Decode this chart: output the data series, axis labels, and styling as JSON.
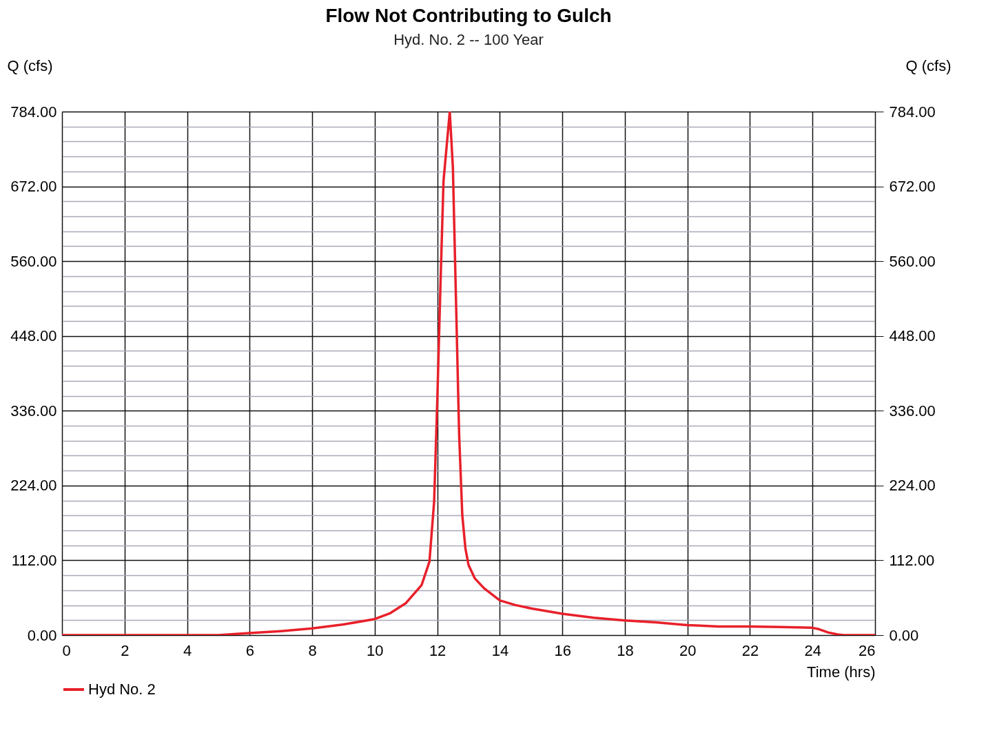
{
  "chart_data": {
    "type": "line",
    "title": "Flow Not Contributing to Gulch",
    "subtitle": "Hyd. No. 2 -- 100 Year",
    "xlabel": "Time (hrs)",
    "ylabel": "Q (cfs)",
    "y2label": "Q (cfs)",
    "xlim": [
      0,
      26
    ],
    "xticks": [
      0,
      2,
      4,
      6,
      8,
      10,
      12,
      14,
      16,
      18,
      20,
      22,
      24,
      26
    ],
    "ylim": [
      0,
      784
    ],
    "yticks": [
      {
        "value": 0,
        "label": "0.00"
      },
      {
        "value": 22.4,
        "label": null
      },
      {
        "value": 44.8,
        "label": null
      },
      {
        "value": 67.2,
        "label": null
      },
      {
        "value": 89.6,
        "label": null
      },
      {
        "value": 112,
        "label": "112.00"
      },
      {
        "value": 134.4,
        "label": null
      },
      {
        "value": 156.8,
        "label": null
      },
      {
        "value": 179.2,
        "label": null
      },
      {
        "value": 201.6,
        "label": null
      },
      {
        "value": 224,
        "label": "224.00"
      },
      {
        "value": 246.4,
        "label": null
      },
      {
        "value": 268.8,
        "label": null
      },
      {
        "value": 291.2,
        "label": null
      },
      {
        "value": 313.6,
        "label": null
      },
      {
        "value": 336,
        "label": "336.00"
      },
      {
        "value": 358.4,
        "label": null
      },
      {
        "value": 380.8,
        "label": null
      },
      {
        "value": 403.2,
        "label": null
      },
      {
        "value": 425.6,
        "label": null
      },
      {
        "value": 448,
        "label": "448.00"
      },
      {
        "value": 470.4,
        "label": null
      },
      {
        "value": 492.8,
        "label": null
      },
      {
        "value": 515.2,
        "label": null
      },
      {
        "value": 537.6,
        "label": null
      },
      {
        "value": 560,
        "label": "560.00"
      },
      {
        "value": 582.4,
        "label": null
      },
      {
        "value": 604.8,
        "label": null
      },
      {
        "value": 627.2,
        "label": null
      },
      {
        "value": 649.6,
        "label": null
      },
      {
        "value": 672,
        "label": "672.00"
      },
      {
        "value": 694.4,
        "label": null
      },
      {
        "value": 716.8,
        "label": null
      },
      {
        "value": 739.2,
        "label": null
      },
      {
        "value": 761.6,
        "label": null
      },
      {
        "value": 784,
        "label": "784.00"
      }
    ],
    "y2lim": [
      0,
      784
    ],
    "y2ticks": [
      {
        "value": 0,
        "label": "0.00"
      },
      {
        "value": 112,
        "label": "112.00"
      },
      {
        "value": 224,
        "label": "224.00"
      },
      {
        "value": 336,
        "label": "336.00"
      },
      {
        "value": 448,
        "label": "448.00"
      },
      {
        "value": 560,
        "label": "560.00"
      },
      {
        "value": 672,
        "label": "672.00"
      },
      {
        "value": 784,
        "label": "784.00"
      }
    ],
    "grid": true,
    "legend": "bottom left",
    "marker": "none",
    "line_style": "solid",
    "series": [
      {
        "name": "Hyd No. 2",
        "color": "#e8202a",
        "x": [
          0,
          2,
          4,
          5,
          6,
          7,
          8,
          9,
          10,
          10.5,
          11,
          11.5,
          11.75,
          11.9,
          12.0,
          12.1,
          12.2,
          12.4,
          12.5,
          12.6,
          12.7,
          12.8,
          12.9,
          13.0,
          13.2,
          13.5,
          14,
          14.5,
          15,
          16,
          17,
          18,
          19,
          20,
          21,
          22,
          23,
          24,
          24.2,
          24.5,
          24.8,
          25,
          26
        ],
        "values": [
          0,
          0,
          0,
          0,
          3,
          6,
          10,
          16,
          24,
          33,
          48,
          75,
          110,
          200,
          350,
          520,
          680,
          784,
          700,
          500,
          300,
          180,
          130,
          105,
          85,
          70,
          52,
          45,
          40,
          32,
          26,
          22,
          19,
          15,
          13,
          13,
          12,
          11,
          9,
          4,
          1,
          0,
          0
        ]
      }
    ]
  }
}
